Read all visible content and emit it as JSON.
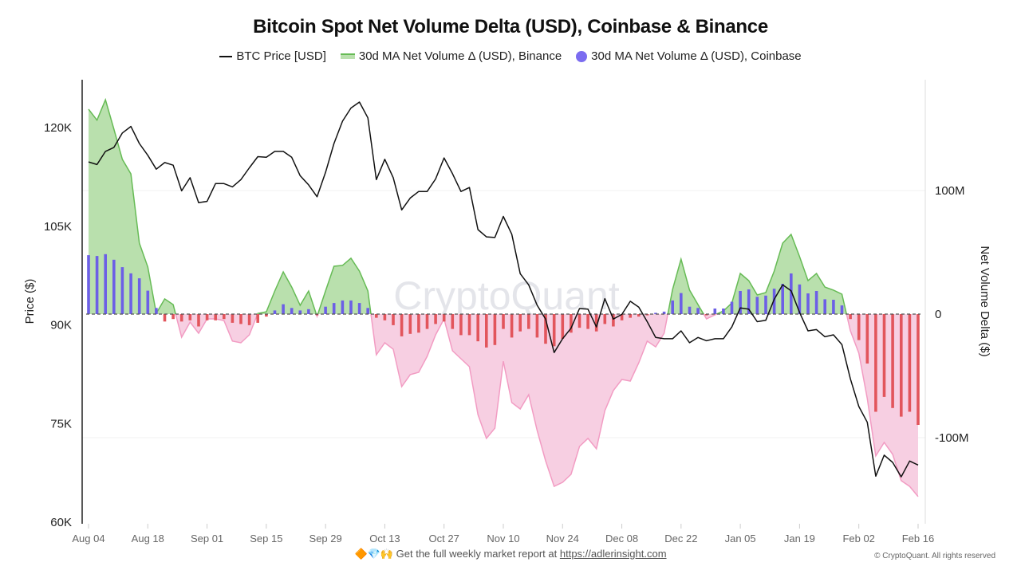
{
  "chart_data": {
    "type": "line",
    "title": "Bitcoin Spot Net Volume Delta (USD), Coinbase & Binance",
    "legend_position": "top",
    "legend": [
      "BTC Price [USD]",
      "30d MA Net Volume Δ (USD), Binance",
      "30d MA Net Volume Δ (USD), Coinbase"
    ],
    "y_left": {
      "label": "Price ($)",
      "ticks": [
        120000,
        105000,
        90000,
        75000,
        60000
      ],
      "tick_labels": [
        "120K",
        "105K",
        "90K",
        "75K",
        "60K"
      ],
      "range": [
        60000,
        127300
      ]
    },
    "y_right": {
      "label": "Net Volume Delta ($)",
      "ticks": [
        100,
        0,
        -100
      ],
      "tick_labels": [
        "100M",
        "0",
        "-100M"
      ],
      "range_millions": [
        -168,
        190
      ]
    },
    "x_tick_labels": [
      "Aug 04",
      "Aug 18",
      "Sep 01",
      "Sep 15",
      "Sep 29",
      "Oct 13",
      "Oct 27",
      "Nov 10",
      "Nov 24",
      "Dec 08",
      "Dec 22",
      "Jan 05",
      "Jan 19",
      "Feb 02",
      "Feb 16"
    ],
    "x": [
      "08-04",
      "08-06",
      "08-08",
      "08-10",
      "08-12",
      "08-14",
      "08-16",
      "08-18",
      "08-20",
      "08-22",
      "08-24",
      "08-26",
      "08-28",
      "08-30",
      "09-01",
      "09-03",
      "09-05",
      "09-07",
      "09-09",
      "09-11",
      "09-13",
      "09-15",
      "09-17",
      "09-19",
      "09-21",
      "09-23",
      "09-25",
      "09-27",
      "09-29",
      "10-01",
      "10-03",
      "10-05",
      "10-07",
      "10-09",
      "10-11",
      "10-13",
      "10-15",
      "10-17",
      "10-19",
      "10-21",
      "10-23",
      "10-25",
      "10-27",
      "10-29",
      "10-31",
      "11-02",
      "11-04",
      "11-06",
      "11-08",
      "11-10",
      "11-12",
      "11-14",
      "11-16",
      "11-18",
      "11-20",
      "11-22",
      "11-24",
      "11-26",
      "11-28",
      "11-30",
      "12-02",
      "12-04",
      "12-06",
      "12-08",
      "12-10",
      "12-12",
      "12-14",
      "12-16",
      "12-18",
      "12-20",
      "12-22",
      "12-24",
      "12-26",
      "12-28",
      "12-30",
      "01-01",
      "01-03",
      "01-05",
      "01-07",
      "01-09",
      "01-11",
      "01-13",
      "01-15",
      "01-17",
      "01-19",
      "01-21",
      "01-23",
      "01-25",
      "01-27",
      "01-29",
      "01-31",
      "02-02",
      "02-04",
      "02-06",
      "02-08",
      "02-10",
      "02-12",
      "02-14",
      "02-16"
    ],
    "series": [
      {
        "name": "BTC Price [USD]",
        "axis": "left",
        "color": "#111111",
        "values": [
          114800,
          114400,
          116400,
          117000,
          119200,
          120200,
          117600,
          115800,
          113700,
          114700,
          114300,
          110400,
          112400,
          108600,
          108800,
          111500,
          111500,
          111000,
          112100,
          113900,
          115600,
          115500,
          116400,
          116400,
          115500,
          112700,
          111300,
          109500,
          113200,
          117600,
          121000,
          123000,
          123900,
          121500,
          112100,
          115200,
          112400,
          107500,
          109300,
          110300,
          110300,
          112200,
          115400,
          113000,
          110300,
          110900,
          104500,
          103400,
          103300,
          106500,
          103800,
          97800,
          96100,
          93000,
          90900,
          85800,
          87900,
          89500,
          92500,
          92400,
          89700,
          94000,
          90900,
          91600,
          93600,
          92700,
          90500,
          88100,
          87900,
          87900,
          89100,
          87300,
          88100,
          87600,
          87900,
          87900,
          89700,
          92600,
          92400,
          90500,
          90700,
          93900,
          96100,
          95200,
          91900,
          89100,
          89300,
          88200,
          88500,
          87000,
          81800,
          77600,
          75200,
          67000,
          70200,
          69100,
          66900,
          69300,
          68700
        ]
      },
      {
        "name": "30d MA Net Volume Δ (USD), Binance",
        "axis": "right",
        "unit": "millions USD",
        "color_positive": "#66bb55",
        "fill_positive": "#b9e0ad",
        "color_negative": "#f29cc3",
        "fill_negative": "#f7cfe2",
        "values": [
          165.8,
          157,
          173.5,
          149.7,
          125.2,
          113.5,
          57.4,
          38.1,
          0.6,
          12.3,
          7.7,
          -18.7,
          -6.5,
          -15.5,
          -3.9,
          -3.9,
          -5.2,
          -21.9,
          -23.2,
          -16.8,
          0.6,
          1.9,
          18.7,
          34.2,
          21.9,
          7.1,
          18.7,
          -1.9,
          18.7,
          38.7,
          39.4,
          45.2,
          34.8,
          18.7,
          -32.9,
          -23.2,
          -28.4,
          -58.7,
          -49,
          -47.1,
          -34.2,
          -16.8,
          -3.9,
          -29.7,
          -36.1,
          -42.6,
          -81.3,
          -100.6,
          -92.3,
          -38.1,
          -71.6,
          -76.8,
          -65.2,
          -94.2,
          -118.7,
          -139.4,
          -136.1,
          -129.7,
          -107.1,
          -100.6,
          -109,
          -78.1,
          -61.9,
          -52.9,
          -54.2,
          -39.4,
          -21.9,
          -26.5,
          -15.5,
          20,
          44.5,
          19.4,
          7.7,
          -3.9,
          -0.6,
          2.6,
          9,
          32.9,
          27.1,
          15.5,
          17.4,
          34.8,
          57.4,
          64.5,
          46.5,
          27.1,
          32.9,
          21.9,
          19.4,
          16.1,
          -13.5,
          -31.6,
          -68.4,
          -114.8,
          -103.9,
          -113.5,
          -134.8,
          -139.4,
          -147.7
        ]
      },
      {
        "name": "30d MA Net Volume Δ (USD), Coinbase",
        "axis": "right",
        "unit": "millions USD",
        "type": "bar",
        "color_positive": "#6c5fe6",
        "color_negative": "#e2555c",
        "values": [
          47.7,
          47,
          48.5,
          44,
          38,
          33,
          29,
          19,
          5,
          -6,
          -4,
          -6,
          -5,
          -10,
          -5,
          -5,
          -4,
          -7,
          -8,
          -9,
          -7,
          -2,
          3,
          8,
          5,
          3,
          4,
          -1,
          6,
          9,
          11,
          11,
          9,
          5,
          -3,
          -5,
          -9,
          -18,
          -16,
          -15,
          -12,
          -8,
          -6,
          -12,
          -17,
          -17,
          -22,
          -27,
          -25,
          -12,
          -19,
          -14,
          -12,
          -19,
          -24,
          -26,
          -20,
          -15,
          -11,
          -12,
          -14,
          -8,
          -10,
          -5,
          -3,
          -2,
          -1,
          1,
          2,
          11,
          17,
          6,
          5,
          -1,
          4.5,
          4.5,
          10,
          18.7,
          20,
          14,
          15,
          20.6,
          24.5,
          32.9,
          24,
          16.8,
          18.7,
          12,
          11.6,
          7,
          -4,
          -21,
          -40,
          -79,
          -67,
          -76,
          -83,
          -79,
          -89.7
        ]
      }
    ],
    "grid": "horizontal-light"
  },
  "watermark": "CryptoQuant",
  "footer": {
    "emojis": "🔶💎🙌",
    "text": "Get the full weekly market report at",
    "link": "https://adlerinsight.com"
  },
  "copyright": "© CryptoQuant. All rights reserved"
}
